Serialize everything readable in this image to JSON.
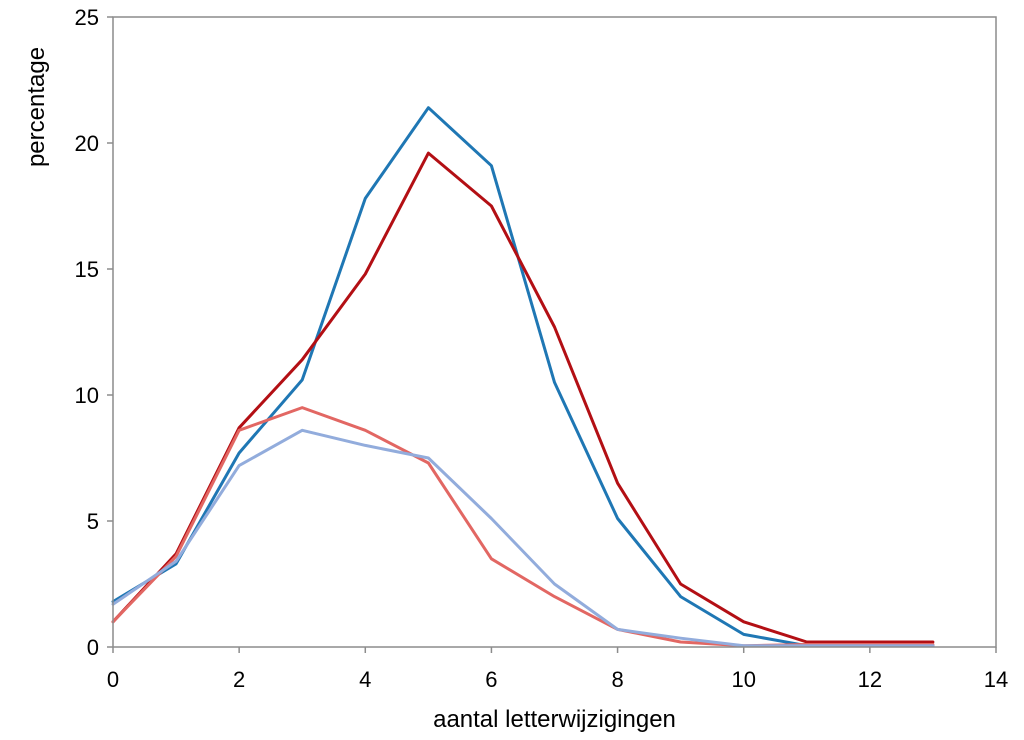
{
  "chart_data": {
    "type": "line",
    "title": "",
    "xlabel": "aantal letterwijzigingen",
    "ylabel": "percentage",
    "xlim": [
      0,
      14
    ],
    "ylim": [
      0,
      25
    ],
    "xticks": [
      0,
      2,
      4,
      6,
      8,
      10,
      12,
      14
    ],
    "yticks": [
      0,
      5,
      10,
      15,
      20,
      25
    ],
    "grid": false,
    "legend": "none",
    "x": [
      0,
      1,
      2,
      3,
      4,
      5,
      6,
      7,
      8,
      9,
      10,
      11,
      12,
      13
    ],
    "series": [
      {
        "color": "#1f77b4",
        "values": [
          1.8,
          3.3,
          7.7,
          10.6,
          17.8,
          21.4,
          19.1,
          10.5,
          5.1,
          2.0,
          0.5,
          0.05,
          0.05,
          0.05
        ]
      },
      {
        "color": "#b30f14",
        "values": [
          1.0,
          3.7,
          8.7,
          11.4,
          14.8,
          19.6,
          17.5,
          12.7,
          6.5,
          2.5,
          1.0,
          0.2,
          0.2,
          0.2
        ]
      },
      {
        "color": "#e26763",
        "values": [
          1.0,
          3.6,
          8.6,
          9.5,
          8.6,
          7.3,
          3.5,
          2.0,
          0.7,
          0.2,
          0.05,
          0.1,
          0.1,
          0.1
        ]
      },
      {
        "color": "#92acdc",
        "values": [
          1.7,
          3.4,
          7.2,
          8.6,
          8.0,
          7.5,
          5.1,
          2.5,
          0.7,
          0.35,
          0.05,
          0.05,
          0.05,
          0.05
        ]
      }
    ]
  }
}
